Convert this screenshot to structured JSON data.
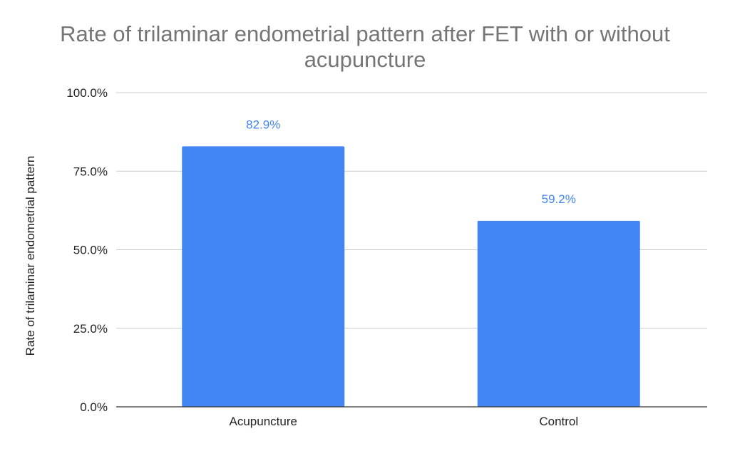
{
  "chart_data": {
    "type": "bar",
    "title_lines": [
      "Rate of trilaminar endometrial pattern after FET with or without",
      "acupuncture"
    ],
    "xlabel": "",
    "ylabel": "Rate of trilaminar endometrial pattern",
    "categories": [
      "Acupuncture",
      "Control"
    ],
    "values": [
      82.9,
      59.2
    ],
    "data_labels": [
      "82.9%",
      "59.2%"
    ],
    "ylim": [
      0,
      100
    ],
    "y_ticks": [
      0,
      25,
      50,
      75,
      100
    ],
    "y_tick_labels": [
      "0.0%",
      "25.0%",
      "50.0%",
      "75.0%",
      "100.0%"
    ],
    "grid": true,
    "legend": "none",
    "colors": {
      "bar": "#4285f4",
      "data_label": "#4285f4",
      "title": "#757575",
      "gridline": "#cccccc",
      "axis_line": "#333333"
    }
  }
}
